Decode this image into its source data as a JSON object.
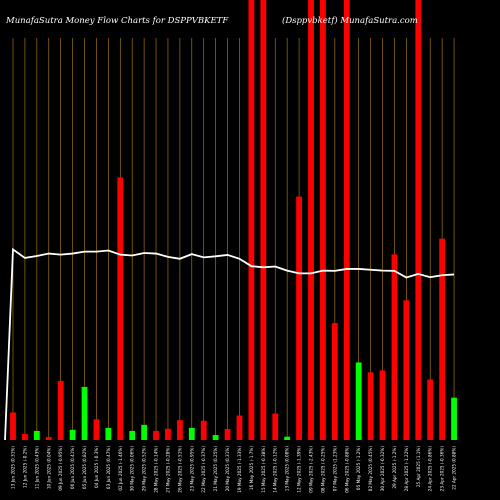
{
  "chart_data": {
    "type": "bar",
    "title": "MunafaSutra  Money Flow  Charts for DSPPVBKETF",
    "subtitle": "(Dsppvbketf)  MunafaSutra.com",
    "colors": {
      "background": "#000000",
      "up": "#00ff00",
      "down": "#ff0000",
      "grid": "#b8860b",
      "line": "#ffffff"
    },
    "categories": [
      "13 Jun 2025 (0.31%)",
      "12 Jun 2025 (-0.2%)",
      "11 Jun 2025 (0.43%)",
      "10 Jun 2025 (0.04%)",
      "09 Jun 2025 (-0.95%)",
      "06 Jun 2025 (0.41%)",
      "05 Jun 2025 (0.82%)",
      "04 Jun 2025 (-0.3%)",
      "03 Jun 2025 (0.47%)",
      "02 Jun 2025 (-1.46%)",
      "30 May 2025 (0.06%)",
      "29 May 2025 (0.52%)",
      "28 May 2025 (-0.14%)",
      "27 May 2025 (-0.28%)",
      "26 May 2025 (-0.51%)",
      "23 May 2025 (0.95%)",
      "22 May 2025 (-0.37%)",
      "21 May 2025 (0.25%)",
      "20 May 2025 (0.31%)",
      "19 May 2025 (-1.33%)",
      "16 May 2025 (-1.7%)",
      "15 May 2025 (-0.38%)",
      "14 May 2025 (-0.12%)",
      "13 May 2025 (0.08%)",
      "12 May 2025 (-1.39%)",
      "09 May 2025 (-2.43%)",
      "08 May 2025 (-0.25%)",
      "07 May 2025 (1.23%)",
      "06 May 2025 (-0.88%)",
      "05 May 2025 (-1.2%)",
      "02 May 2025 (0.45%)",
      "30 Apr 2025 (-0.32%)",
      "29 Apr 2025 (-1.2%)",
      "28 Apr 2025 (-1.22%)",
      "25 Apr 2025 (1.1%)",
      "24 Apr 2025 (-0.86%)",
      "23 Apr 2025 (-0.36%)",
      "22 Apr 2025 (0.88%)"
    ],
    "series": [
      {
        "values": [
          10.0,
          2.2,
          3.3,
          1.1,
          21.5,
          3.7,
          19.3,
          7.5,
          4.4,
          95.5,
          3.3,
          5.5,
          3.3,
          4.1,
          7.2,
          4.4,
          7.0,
          1.8,
          4.0,
          8.9,
          160,
          160,
          9.6,
          1.2,
          88.5,
          160,
          160,
          42.5,
          160,
          28.2,
          24.6,
          25.3,
          67.5,
          50.8,
          160,
          22.0,
          73.2,
          15.4
        ],
        "directions": [
          "down",
          "down",
          "up",
          "down",
          "down",
          "up",
          "up",
          "down",
          "up",
          "down",
          "up",
          "up",
          "down",
          "down",
          "down",
          "up",
          "down",
          "up",
          "down",
          "down",
          "down",
          "down",
          "down",
          "up",
          "down",
          "down",
          "down",
          "down",
          "down",
          "up",
          "down",
          "down",
          "down",
          "down",
          "down",
          "down",
          "down",
          "up"
        ]
      },
      {
        "values": [
          69.3,
          66.2,
          66.9,
          67.8,
          67.4,
          67.8,
          68.5,
          68.5,
          68.9,
          67.4,
          67.1,
          68.0,
          67.8,
          66.6,
          65.9,
          67.6,
          66.4,
          66.8,
          67.3,
          65.9,
          63.2,
          62.8,
          63.1,
          61.6,
          60.6,
          60.6,
          61.6,
          61.5,
          62.2,
          62.2,
          61.9,
          61.6,
          61.5,
          59.1,
          60.4,
          59.2,
          59.9,
          60.2
        ]
      }
    ],
    "ylim": [
      0,
      160
    ],
    "line_ylim": [
      0,
      160
    ],
    "grid": "vertical",
    "legend": "none"
  }
}
